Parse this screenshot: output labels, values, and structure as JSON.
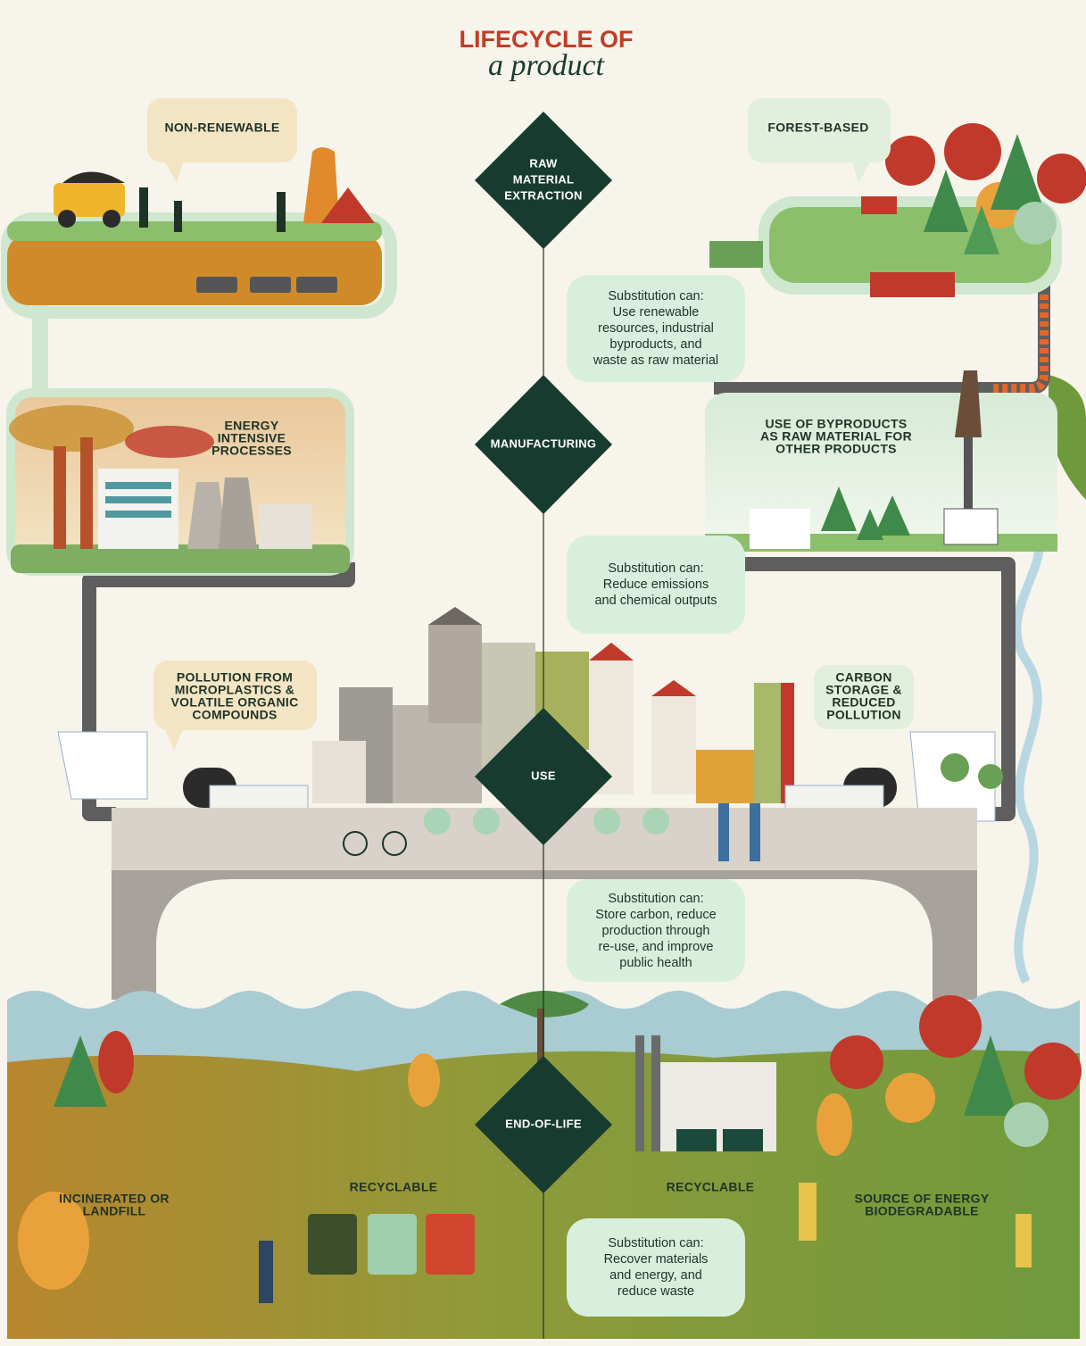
{
  "title": {
    "main": "LIFECYCLE OF",
    "sub": "a product"
  },
  "stages": [
    {
      "lines": [
        "RAW",
        "MATERIAL",
        "EXTRACTION"
      ]
    },
    {
      "lines": [
        "MANUFACTURING"
      ]
    },
    {
      "lines": [
        "USE"
      ]
    },
    {
      "lines": [
        "END-OF-LIFE"
      ]
    }
  ],
  "callouts": {
    "non_renewable": [
      "NON-RENEWABLE"
    ],
    "forest_based": [
      "FOREST-BASED"
    ],
    "energy_intensive": [
      "ENERGY",
      "INTENSIVE",
      "PROCESSES"
    ],
    "byproducts": [
      "USE OF BYPRODUCTS",
      "AS RAW MATERIAL FOR",
      "OTHER PRODUCTS"
    ],
    "pollution": [
      "POLLUTION FROM",
      "MICROPLASTICS &",
      "VOLATILE ORGANIC",
      "COMPOUNDS"
    ],
    "carbon": [
      "CARBON",
      "STORAGE &",
      "REDUCED",
      "POLLUTION"
    ],
    "incinerated": [
      "INCINERATED OR",
      "LANDFILL"
    ],
    "recyclable_left": [
      "RECYCLABLE"
    ],
    "recyclable_right": [
      "RECYCLABLE"
    ],
    "energy_source": [
      "SOURCE OF ENERGY",
      "BIODEGRADABLE"
    ]
  },
  "substitutions": [
    [
      "Substitution can:",
      "Use renewable",
      "resources, industrial",
      "byproducts, and",
      "waste as raw material"
    ],
    [
      "Substitution can:",
      "Reduce emissions",
      "and chemical outputs"
    ],
    [
      "Substitution can:",
      "Store carbon, reduce",
      "production through",
      "re-use, and improve",
      "public health"
    ],
    [
      "Substitution can:",
      "Recover materials",
      "and energy, and",
      "reduce waste"
    ]
  ]
}
